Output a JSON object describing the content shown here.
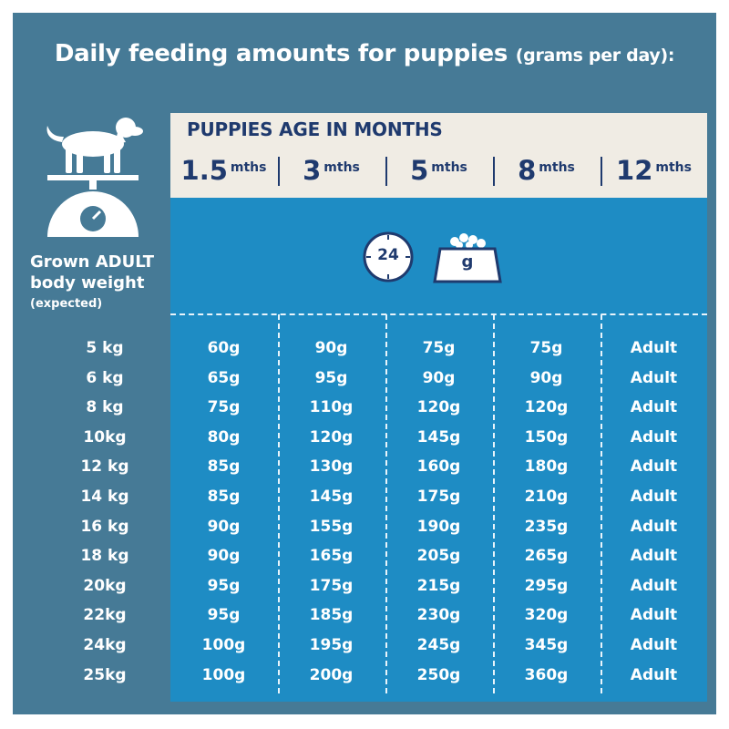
{
  "title": {
    "main": "Daily feeding amounts for puppies",
    "sub": "(grams per day):"
  },
  "header": {
    "label": "PUPPIES AGE IN MONTHS",
    "months": [
      {
        "num": "1.5",
        "unit": "mths"
      },
      {
        "num": "3",
        "unit": "mths"
      },
      {
        "num": "5",
        "unit": "mths"
      },
      {
        "num": "8",
        "unit": "mths"
      },
      {
        "num": "12",
        "unit": "mths"
      }
    ]
  },
  "icons": {
    "clock_label": "24",
    "bowl_label": "g"
  },
  "left": {
    "line1": "Grown ADULT",
    "line2": "body weight",
    "line3": "(expected)"
  },
  "rows": [
    {
      "weight": "5 kg",
      "values": [
        "60g",
        "90g",
        "75g",
        "75g",
        "Adult"
      ]
    },
    {
      "weight": "6 kg",
      "values": [
        "65g",
        "95g",
        "90g",
        "90g",
        "Adult"
      ]
    },
    {
      "weight": "8 kg",
      "values": [
        "75g",
        "110g",
        "120g",
        "120g",
        "Adult"
      ]
    },
    {
      "weight": "10kg",
      "values": [
        "80g",
        "120g",
        "145g",
        "150g",
        "Adult"
      ]
    },
    {
      "weight": "12 kg",
      "values": [
        "85g",
        "130g",
        "160g",
        "180g",
        "Adult"
      ]
    },
    {
      "weight": "14 kg",
      "values": [
        "85g",
        "145g",
        "175g",
        "210g",
        "Adult"
      ]
    },
    {
      "weight": "16 kg",
      "values": [
        "90g",
        "155g",
        "190g",
        "235g",
        "Adult"
      ]
    },
    {
      "weight": "18 kg",
      "values": [
        "90g",
        "165g",
        "205g",
        "265g",
        "Adult"
      ]
    },
    {
      "weight": "20kg",
      "values": [
        "95g",
        "175g",
        "215g",
        "295g",
        "Adult"
      ]
    },
    {
      "weight": "22kg",
      "values": [
        "95g",
        "185g",
        "230g",
        "320g",
        "Adult"
      ]
    },
    {
      "weight": "24kg",
      "values": [
        "100g",
        "195g",
        "245g",
        "345g",
        "Adult"
      ]
    },
    {
      "weight": "25kg",
      "values": [
        "100g",
        "200g",
        "250g",
        "360g",
        "Adult"
      ]
    }
  ],
  "colors": {
    "frame": "#467a96",
    "header_band": "#f0ece4",
    "table": "#1e8cc4",
    "navy": "#1f3a6e"
  }
}
